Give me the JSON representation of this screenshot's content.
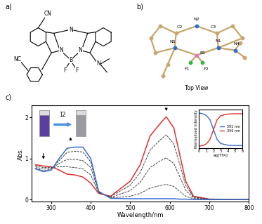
{
  "panel_labels": [
    "a)",
    "b)",
    "c)"
  ],
  "structure": {
    "labels": [
      "CN",
      "NC",
      "N",
      "N",
      "N",
      "B",
      "F",
      "F",
      "N"
    ]
  },
  "crystal": {
    "labels": [
      "C2",
      "N2",
      "C3",
      "N5",
      "B1",
      "N1",
      "N4",
      "F1",
      "F2"
    ],
    "caption": "Top View"
  },
  "chart_data": [
    {
      "type": "line",
      "xlabel": "Wavelength/nm",
      "ylabel": "Abs.",
      "annotations": [
        "12"
      ],
      "xlim": [
        250,
        800
      ],
      "xticks": [
        300,
        400,
        500,
        600,
        700,
        800
      ],
      "ylim": [
        -0.05,
        2.3
      ],
      "yticks": [
        0,
        1,
        2
      ],
      "x": [
        260,
        280,
        300,
        320,
        340,
        360,
        380,
        400,
        420,
        450,
        500,
        525,
        550,
        575,
        591,
        610,
        625,
        640,
        660,
        700,
        800
      ],
      "series": [
        {
          "color": "#e03030",
          "line_style": "solid",
          "values": [
            0.85,
            0.82,
            0.8,
            0.72,
            0.62,
            0.6,
            0.55,
            0.4,
            0.15,
            0.08,
            0.45,
            0.85,
            1.55,
            1.85,
            2.02,
            1.75,
            1.1,
            0.45,
            0.08,
            0.01,
            0.0
          ]
        },
        {
          "color": "#222222",
          "line_style": "dashed",
          "values": [
            0.83,
            0.78,
            0.78,
            0.8,
            0.8,
            0.78,
            0.75,
            0.6,
            0.17,
            0.07,
            0.35,
            0.66,
            1.2,
            1.45,
            1.58,
            1.36,
            0.86,
            0.35,
            0.06,
            0.01,
            0.0
          ]
        },
        {
          "color": "#222222",
          "line_style": "dashed",
          "values": [
            0.8,
            0.74,
            0.76,
            0.88,
            0.98,
            0.98,
            0.95,
            0.78,
            0.18,
            0.05,
            0.22,
            0.42,
            0.78,
            0.94,
            1.02,
            0.88,
            0.56,
            0.23,
            0.04,
            0.0,
            0.0
          ]
        },
        {
          "color": "#222222",
          "line_style": "dashed",
          "values": [
            0.77,
            0.7,
            0.74,
            0.95,
            1.15,
            1.18,
            1.16,
            0.92,
            0.19,
            0.04,
            0.08,
            0.15,
            0.28,
            0.34,
            0.37,
            0.32,
            0.2,
            0.08,
            0.02,
            0.0,
            0.0
          ]
        },
        {
          "color": "#3a6fd0",
          "line_style": "solid",
          "values": [
            0.75,
            0.68,
            0.72,
            1.0,
            1.25,
            1.28,
            1.28,
            1.0,
            0.2,
            0.03,
            0.02,
            0.02,
            0.02,
            0.02,
            0.02,
            0.02,
            0.01,
            0.01,
            0.0,
            0.0,
            0.0
          ]
        }
      ]
    },
    {
      "type": "line",
      "xlabel": "eq[TFA]",
      "ylabel": "Normalized Intensity",
      "tick_labels": "x",
      "legend": "center right",
      "xlim": [
        0,
        6
      ],
      "xticks": [
        0,
        1,
        2,
        3,
        4,
        5,
        6
      ],
      "ylim": [
        -0.05,
        1.1
      ],
      "x": [
        0,
        0.5,
        1,
        1.5,
        2,
        2.5,
        3,
        4,
        5,
        6
      ],
      "series": [
        {
          "name": "591 nm",
          "color": "#3a6fd0",
          "line_style": "solid",
          "values": [
            1.0,
            0.98,
            0.93,
            0.8,
            0.5,
            0.2,
            0.08,
            0.03,
            0.02,
            0.02
          ]
        },
        {
          "name": "350 nm",
          "color": "#e03030",
          "line_style": "solid",
          "values": [
            0.0,
            0.02,
            0.07,
            0.2,
            0.5,
            0.8,
            0.92,
            0.97,
            0.98,
            0.98
          ]
        }
      ]
    }
  ]
}
